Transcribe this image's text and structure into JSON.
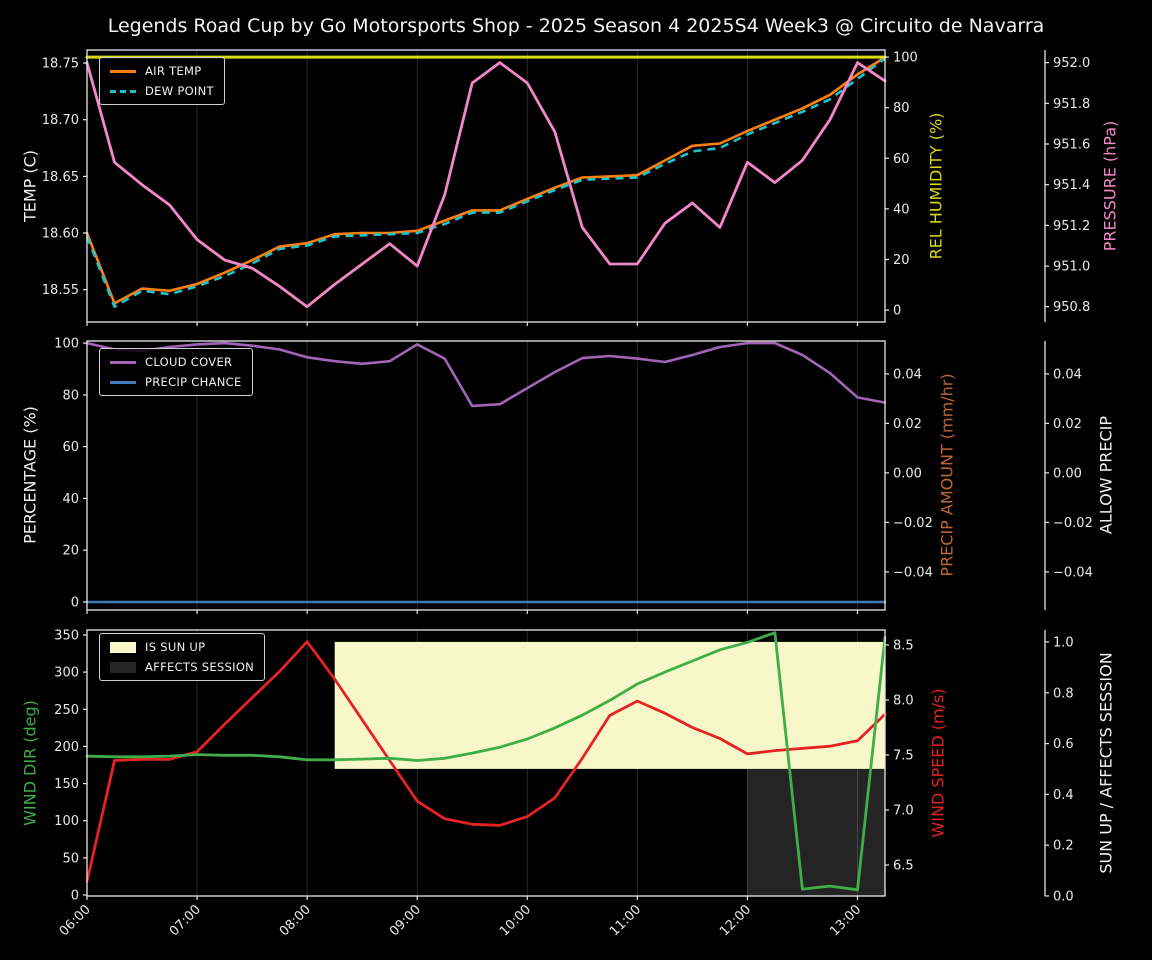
{
  "title": "Legends Road Cup by Go Motorsports Shop - 2025 Season 4 2025S4 Week3 @ Circuito de Navarra",
  "x_times": [
    "06:00",
    "06:15",
    "06:30",
    "06:45",
    "07:00",
    "07:15",
    "07:30",
    "07:45",
    "08:00",
    "08:15",
    "08:30",
    "08:45",
    "09:00",
    "09:15",
    "09:30",
    "09:45",
    "10:00",
    "10:15",
    "10:30",
    "10:45",
    "11:00",
    "11:15",
    "11:30",
    "11:45",
    "12:00",
    "12:15",
    "12:30",
    "12:45",
    "13:00",
    "13:15"
  ],
  "x_tick_labels": [
    "06:00",
    "07:00",
    "08:00",
    "09:00",
    "10:00",
    "11:00",
    "12:00",
    "13:00"
  ],
  "chart_data": [
    {
      "name": "temperature-humidity-pressure",
      "type": "line",
      "xlim": [
        6.0,
        13.25
      ],
      "series": [
        {
          "name": "AIR TEMP",
          "axis": "left",
          "color": "#ff7f0e",
          "dash": false,
          "width": 2.6,
          "values": [
            18.6,
            18.538,
            18.551,
            18.549,
            18.555,
            18.565,
            18.576,
            18.588,
            18.591,
            18.599,
            18.6,
            18.6,
            18.602,
            18.611,
            18.62,
            18.62,
            18.63,
            18.64,
            18.649,
            18.65,
            18.651,
            18.664,
            18.677,
            18.679,
            18.69,
            18.7,
            18.71,
            18.722,
            18.74,
            18.755
          ]
        },
        {
          "name": "DEW POINT",
          "axis": "left",
          "color": "#1fc3cb",
          "dash": true,
          "width": 2.6,
          "values": [
            18.597,
            18.535,
            18.549,
            18.546,
            18.553,
            18.562,
            18.573,
            18.586,
            18.589,
            18.597,
            18.598,
            18.599,
            18.6,
            18.608,
            18.618,
            18.618,
            18.628,
            18.638,
            18.647,
            18.648,
            18.649,
            18.661,
            18.672,
            18.675,
            18.687,
            18.697,
            18.707,
            18.718,
            18.736,
            18.754
          ]
        },
        {
          "name": "REL HUMIDITY",
          "axis": "right1",
          "color": "#d9d910",
          "dash": false,
          "width": 3,
          "values": [
            100,
            100,
            100,
            100,
            100,
            100,
            100,
            100,
            100,
            100,
            100,
            100,
            100,
            100,
            100,
            100,
            100,
            100,
            100,
            100,
            100,
            100,
            100,
            100,
            100,
            100,
            100,
            100,
            100,
            100
          ]
        },
        {
          "name": "PRESSURE",
          "axis": "right2",
          "color": "#f287c7",
          "dash": false,
          "width": 2.8,
          "values": [
            952.0,
            951.51,
            951.4,
            951.3,
            951.13,
            951.03,
            950.99,
            950.9,
            950.8,
            950.91,
            951.01,
            951.11,
            951.0,
            951.35,
            951.9,
            952.0,
            951.9,
            951.66,
            951.19,
            951.01,
            951.01,
            951.21,
            951.31,
            951.19,
            951.51,
            951.41,
            951.52,
            951.72,
            952.0,
            951.91
          ]
        }
      ],
      "axes": {
        "left": {
          "label": "TEMP (C)",
          "label_color": "#f0f0f0",
          "range": [
            18.5215,
            18.7615
          ],
          "ticks": [
            18.55,
            18.6,
            18.65,
            18.7,
            18.75
          ],
          "tick_labels": [
            "18.55",
            "18.60",
            "18.65",
            "18.70",
            "18.75"
          ]
        },
        "right1": {
          "label": "REL HUMIDITY (%)",
          "label_color": "#d9d910",
          "range": [
            -4.7,
            102.8
          ],
          "ticks": [
            0,
            20,
            40,
            60,
            80,
            100
          ],
          "tick_labels": [
            "0",
            "20",
            "40",
            "60",
            "80",
            "100"
          ]
        },
        "right2": {
          "label": "PRESSURE (hPa)",
          "label_color": "#f287c7",
          "range": [
            950.725,
            952.062
          ],
          "ticks": [
            950.8,
            951.0,
            951.2,
            951.4,
            951.6,
            951.8,
            952.0
          ],
          "tick_labels": [
            "950.8",
            "951.0",
            "951.2",
            "951.4",
            "951.6",
            "951.8",
            "952.0"
          ]
        }
      }
    },
    {
      "name": "cloud-precip",
      "type": "line",
      "xlim": [
        6.0,
        13.25
      ],
      "series": [
        {
          "name": "CLOUD COVER",
          "axis": "left",
          "color": "#a264b6",
          "dash": false,
          "width": 2.6,
          "values": [
            100,
            97.5,
            97,
            98.5,
            99.5,
            100,
            99,
            97.5,
            94.5,
            93,
            92,
            93,
            99.5,
            94,
            75.7,
            76.4,
            82.6,
            88.8,
            94.2,
            95,
            94,
            92.7,
            95.4,
            98.5,
            100,
            100,
            95.4,
            88.4,
            79,
            77
          ]
        },
        {
          "name": "PRECIP CHANCE",
          "axis": "left",
          "color": "#4279bd",
          "dash": false,
          "width": 2.6,
          "values": [
            0,
            0,
            0,
            0,
            0,
            0,
            0,
            0,
            0,
            0,
            0,
            0,
            0,
            0,
            0,
            0,
            0,
            0,
            0,
            0,
            0,
            0,
            0,
            0,
            0,
            0,
            0,
            0,
            0,
            0
          ]
        }
      ],
      "axes": {
        "left": {
          "label": "PERCENTAGE (%)",
          "label_color": "#f0f0f0",
          "range": [
            -3.1,
            100.8
          ],
          "ticks": [
            0,
            20,
            40,
            60,
            80,
            100
          ],
          "tick_labels": [
            "0",
            "20",
            "40",
            "60",
            "80",
            "100"
          ]
        },
        "right1": {
          "label": "PRECIP AMOUNT (mm/hr)",
          "label_color": "#bf6630",
          "range": [
            -0.0554,
            0.0533
          ],
          "ticks": [
            -0.04,
            -0.02,
            0.0,
            0.02,
            0.04
          ],
          "tick_labels": [
            "−0.04",
            "−0.02",
            "0.00",
            "0.02",
            "0.04"
          ]
        },
        "right2": {
          "label": "ALLOW PRECIP",
          "label_color": "#f0f0f0",
          "range": [
            -0.0554,
            0.0533
          ],
          "ticks": [
            -0.04,
            -0.02,
            0.0,
            0.02,
            0.04
          ],
          "tick_labels": [
            "−0.04",
            "−0.02",
            "0.00",
            "0.02",
            "0.04"
          ]
        }
      }
    },
    {
      "name": "wind-sun",
      "type": "line",
      "xlim": [
        6.0,
        13.25
      ],
      "bands": [
        {
          "name": "IS SUN UP",
          "color": "#f7f7c9",
          "axis": "right2",
          "x_from": 8.25,
          "x_to": 13.25,
          "y_from": 0.5,
          "y_to": 1.0
        },
        {
          "name": "AFFECTS SESSION",
          "color": "#242424",
          "axis": "right2",
          "x_from": 12.0,
          "x_to": 13.25,
          "y_from": 0.0,
          "y_to": 0.5
        }
      ],
      "series": [
        {
          "name": "WIND SPEED",
          "axis": "right1",
          "color": "#e62222",
          "dash": false,
          "width": 2.8,
          "values": [
            6.35,
            7.45,
            7.46,
            7.46,
            7.53,
            7.78,
            8.02,
            8.26,
            8.53,
            8.19,
            7.82,
            7.45,
            7.08,
            6.92,
            6.87,
            6.86,
            6.94,
            7.11,
            7.47,
            7.86,
            7.99,
            7.88,
            7.75,
            7.65,
            7.51,
            7.54,
            7.56,
            7.58,
            7.63,
            7.87
          ]
        },
        {
          "name": "WIND DIR",
          "axis": "left",
          "color": "#3fae49",
          "dash": false,
          "width": 2.8,
          "values": [
            187,
            186,
            186,
            187,
            189,
            188,
            188,
            186,
            182,
            182,
            183,
            184,
            181,
            184,
            191,
            199,
            210,
            225,
            242,
            262,
            284,
            300,
            315,
            330,
            340,
            353,
            8,
            12,
            7,
            347
          ]
        }
      ],
      "axes": {
        "left": {
          "label": "WIND DIR (deg)",
          "label_color": "#3fae49",
          "range": [
            -1.3,
            356.7
          ],
          "ticks": [
            0,
            50,
            100,
            150,
            200,
            250,
            300,
            350
          ],
          "tick_labels": [
            "0",
            "50",
            "100",
            "150",
            "200",
            "250",
            "300",
            "350"
          ]
        },
        "right1": {
          "label": "WIND SPEED (m/s)",
          "label_color": "#e62222",
          "range": [
            6.218,
            8.636
          ],
          "ticks": [
            6.5,
            7.0,
            7.5,
            8.0,
            8.5
          ],
          "tick_labels": [
            "6.5",
            "7.0",
            "7.5",
            "8.0",
            "8.5"
          ]
        },
        "right2": {
          "label": "SUN UP / AFFECTS SESSION",
          "label_color": "#f0f0f0",
          "range": [
            0.0,
            1.047
          ],
          "ticks": [
            0.0,
            0.2,
            0.4,
            0.6,
            0.8,
            1.0
          ],
          "tick_labels": [
            "0.0",
            "0.2",
            "0.4",
            "0.6",
            "0.8",
            "1.0"
          ]
        }
      }
    }
  ]
}
